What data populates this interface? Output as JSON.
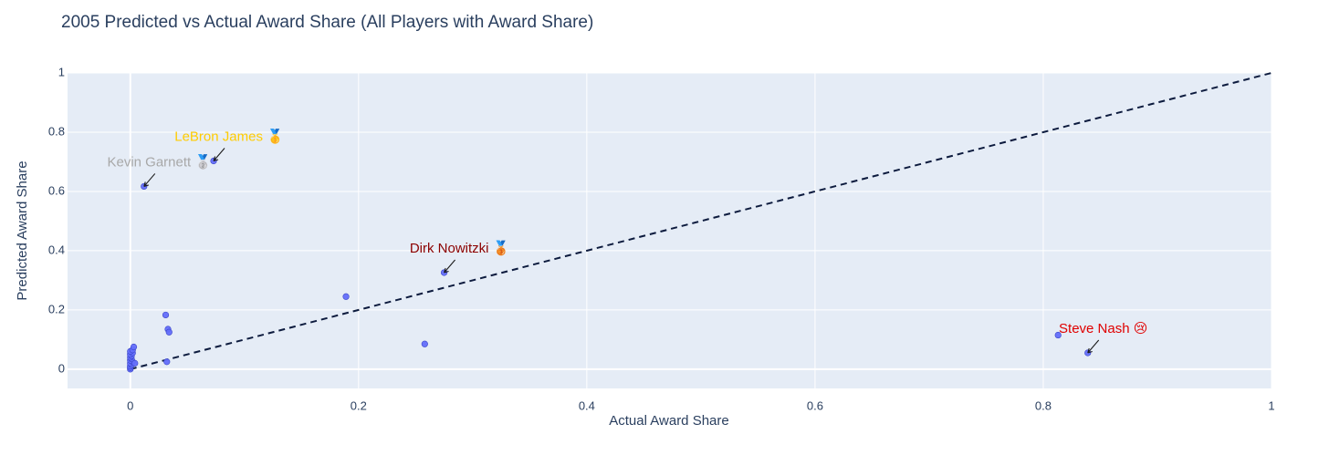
{
  "chart_data": {
    "type": "scatter",
    "title": "2005 Predicted vs Actual Award Share (All Players with Award Share)",
    "xlabel": "Actual Award Share",
    "ylabel": "Predicted Award Share",
    "xlim": [
      -0.055,
      1.0
    ],
    "ylim": [
      -0.065,
      1.0
    ],
    "x_ticks": [
      0,
      0.2,
      0.4,
      0.6,
      0.8,
      1
    ],
    "x_tick_labels": [
      "0",
      "0.2",
      "0.4",
      "0.6",
      "0.8",
      "1"
    ],
    "y_ticks": [
      0,
      0.2,
      0.4,
      0.6,
      0.8,
      1
    ],
    "y_tick_labels": [
      "0",
      "0.2",
      "0.4",
      "0.6",
      "0.8",
      "1"
    ],
    "grid": true,
    "colors": {
      "plot_bg": "#e5ecf6",
      "grid": "#ffffff",
      "marker": "#636efa",
      "reference_line": "#0d1b3e",
      "text": "#2a3f5f"
    },
    "points": [
      {
        "x": 0.0,
        "y": 0.0
      },
      {
        "x": 0.0,
        "y": 0.005
      },
      {
        "x": 0.0,
        "y": 0.01
      },
      {
        "x": 0.001,
        "y": 0.015
      },
      {
        "x": 0.0,
        "y": 0.02
      },
      {
        "x": 0.002,
        "y": 0.025
      },
      {
        "x": 0.0,
        "y": 0.03
      },
      {
        "x": 0.001,
        "y": 0.035
      },
      {
        "x": 0.0,
        "y": 0.04
      },
      {
        "x": 0.001,
        "y": 0.045
      },
      {
        "x": 0.0,
        "y": 0.05
      },
      {
        "x": 0.002,
        "y": 0.055
      },
      {
        "x": 0.0,
        "y": 0.06
      },
      {
        "x": 0.002,
        "y": 0.065
      },
      {
        "x": 0.003,
        "y": 0.075
      },
      {
        "x": 0.004,
        "y": 0.02
      },
      {
        "x": 0.012,
        "y": 0.617
      },
      {
        "x": 0.031,
        "y": 0.183
      },
      {
        "x": 0.033,
        "y": 0.135
      },
      {
        "x": 0.034,
        "y": 0.125
      },
      {
        "x": 0.032,
        "y": 0.025
      },
      {
        "x": 0.073,
        "y": 0.703
      },
      {
        "x": 0.189,
        "y": 0.245
      },
      {
        "x": 0.258,
        "y": 0.085
      },
      {
        "x": 0.275,
        "y": 0.326
      },
      {
        "x": 0.813,
        "y": 0.115
      },
      {
        "x": 0.839,
        "y": 0.055
      }
    ],
    "reference_line": {
      "x": [
        0,
        1
      ],
      "y": [
        0,
        1
      ],
      "style": "dashed"
    },
    "annotations": [
      {
        "text": "LeBron James",
        "emoji": "🥇",
        "x": 0.073,
        "y": 0.703,
        "color": "#ffcc00"
      },
      {
        "text": "Kevin Garnett",
        "emoji": "🥈",
        "x": 0.012,
        "y": 0.617,
        "color": "#a8a8a8"
      },
      {
        "text": "Dirk Nowitzki",
        "emoji": "🥉",
        "x": 0.275,
        "y": 0.326,
        "color": "#8b0000"
      },
      {
        "text": "Steve Nash",
        "emoji": "😢",
        "x": 0.839,
        "y": 0.055,
        "color": "#e00000"
      }
    ]
  }
}
